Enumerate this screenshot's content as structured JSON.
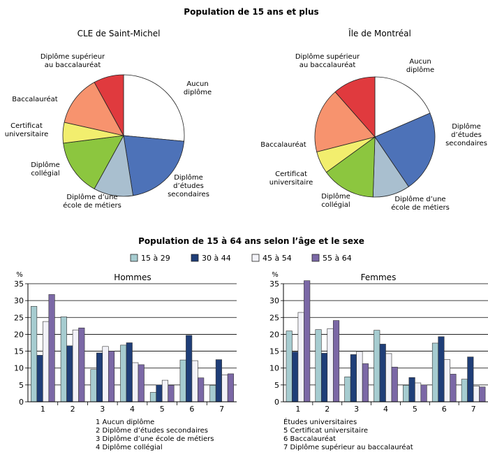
{
  "title_top": "Population de 15 ans et plus",
  "title_bottom": "Population de 15 à 64 ans selon l’âge et le sexe",
  "colors": {
    "pie": [
      "#ffffff",
      "#4d72b8",
      "#a9bfcf",
      "#8cc63f",
      "#f2ee6e",
      "#f7936e",
      "#e03a3e"
    ],
    "bars": [
      "#a6ccd0",
      "#1f3e78",
      "#f2f2f8",
      "#7b68a6"
    ]
  },
  "chart_data": [
    {
      "type": "pie",
      "title": "CLE de Saint-Michel",
      "labels": [
        [
          "Aucun",
          "diplôme"
        ],
        [
          "Diplôme",
          "d’études",
          "secondaires"
        ],
        [
          "Diplôme d’une",
          "école de métiers"
        ],
        [
          "Diplôme",
          "collégial"
        ],
        [
          "Certificat",
          "universitaire"
        ],
        [
          "Baccalauréat"
        ],
        [
          "Diplôme supérieur",
          "au baccalauréat"
        ]
      ],
      "values": [
        26.5,
        21.0,
        10.5,
        15.0,
        5.5,
        13.5,
        8.0
      ]
    },
    {
      "type": "pie",
      "title": "Île de Montréal",
      "labels": [
        [
          "Aucun",
          "diplôme"
        ],
        [
          "Diplôme",
          "d’études",
          "secondaires"
        ],
        [
          "Diplôme d’une",
          "école de métiers"
        ],
        [
          "Diplôme",
          "collégial"
        ],
        [
          "Certificat",
          "universitaire"
        ],
        [
          "Baccalauréat"
        ],
        [
          "Diplôme supérieur",
          "au baccalauréat"
        ]
      ],
      "values": [
        18.5,
        22.0,
        10.0,
        14.5,
        6.0,
        17.5,
        11.5
      ]
    },
    {
      "type": "bar",
      "title": "Hommes",
      "ylabel": "%",
      "ylim": [
        0,
        35
      ],
      "yticks": [
        0,
        5,
        10,
        15,
        20,
        25,
        30,
        35
      ],
      "categories": [
        "1",
        "2",
        "3",
        "4",
        "5",
        "6",
        "7"
      ],
      "series": [
        {
          "name": "15 à 29",
          "values": [
            28.3,
            25.2,
            9.6,
            16.8,
            2.8,
            12.4,
            4.9
          ]
        },
        {
          "name": "30 à 44",
          "values": [
            13.8,
            16.6,
            14.5,
            17.5,
            5.0,
            19.7,
            12.5
          ]
        },
        {
          "name": "45 à 54",
          "values": [
            23.8,
            21.3,
            16.4,
            11.6,
            6.4,
            12.2,
            8.0
          ]
        },
        {
          "name": "55 à 64",
          "values": [
            31.8,
            21.9,
            15.0,
            11.0,
            4.9,
            7.1,
            8.3
          ]
        }
      ]
    },
    {
      "type": "bar",
      "title": "Femmes",
      "ylabel": "%",
      "ylim": [
        0,
        35
      ],
      "yticks": [
        0,
        5,
        10,
        15,
        20,
        25,
        30,
        35
      ],
      "categories": [
        "1",
        "2",
        "3",
        "4",
        "5",
        "6",
        "7"
      ],
      "series": [
        {
          "name": "15 à 29",
          "values": [
            21.0,
            21.4,
            7.4,
            21.2,
            4.9,
            17.4,
            6.7
          ]
        },
        {
          "name": "30 à 44",
          "values": [
            14.8,
            14.4,
            14.0,
            17.1,
            7.2,
            19.3,
            13.3
          ]
        },
        {
          "name": "45 à 54",
          "values": [
            26.5,
            21.7,
            14.9,
            14.3,
            5.6,
            12.5,
            4.7
          ]
        },
        {
          "name": "55 à 64",
          "values": [
            35.9,
            24.1,
            11.3,
            10.3,
            5.0,
            8.2,
            4.4
          ]
        }
      ]
    }
  ],
  "legend_bottom_left": [
    "1  Aucun diplôme",
    "2  Diplôme d’études secondaires",
    "3  Diplôme d’une école de métiers",
    "4  Diplôme collégial"
  ],
  "legend_bottom_right": [
    "Études universitaires",
    "5  Certificat universitaire",
    "6  Baccalauréat",
    "7  Diplôme supérieur au baccalauréat"
  ]
}
